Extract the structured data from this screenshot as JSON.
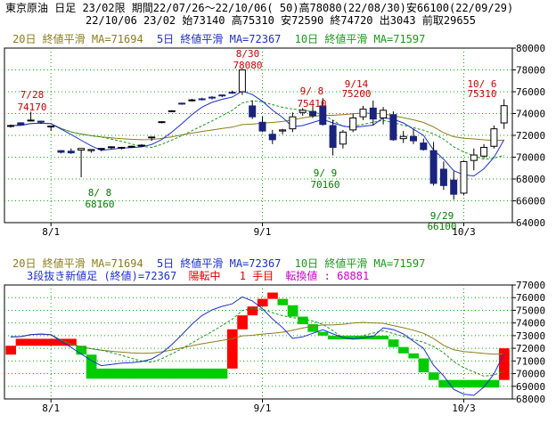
{
  "header": {
    "line1": "東京原油 日足 23/02限 期間22/07/26～22/10/06( 50)高78080(22/08/30)安66100(22/09/29)",
    "line2": "22/10/06 23/02 始73140 高75310 安72590 終74720 出3043 前取29655"
  },
  "legend_top": {
    "ma20": "20日 終値平滑 MA=71694",
    "ma5": "5日 終値平滑 MA=72367",
    "ma10": "10日 終値平滑 MA=71597"
  },
  "legend_bottom": {
    "ma20": "20日 終値平滑 MA=71694",
    "ma5": "5日 終値平滑 MA=72367",
    "ma10": "10日 終値平滑 MA=71597",
    "kagi_label": "3段抜き新値足 (終値)=72367",
    "state": "陽転中",
    "step": "1 手目",
    "convert": "転換値 : 68881"
  },
  "colors": {
    "ma20": "#8b7d1a",
    "ma5": "#1c2fd0",
    "ma10": "#1a9a1a",
    "bear_candle": "#1a237e",
    "up_block": "#ff0000",
    "down_block": "#00cc00",
    "annotation_high": "#cc0000",
    "annotation_low": "#008000",
    "grid": "#00b000"
  },
  "annotations": [
    {
      "date": "7/28",
      "price": "74170",
      "kind": "high"
    },
    {
      "date": "8/30",
      "price": "78080",
      "kind": "high"
    },
    {
      "date": "9/ 8",
      "price": "75410",
      "kind": "high"
    },
    {
      "date": "9/14",
      "price": "75200",
      "kind": "high"
    },
    {
      "date": "10/ 6",
      "price": "75310",
      "kind": "high"
    },
    {
      "date": "8/ 8",
      "price": "68160",
      "kind": "low"
    },
    {
      "date": "9/ 9",
      "price": "70160",
      "kind": "low"
    },
    {
      "date": "9/29",
      "price": "66100",
      "kind": "low"
    }
  ],
  "x_ticks": [
    "8/1",
    "9/1",
    "10/3"
  ],
  "chart_data": [
    {
      "type": "candlestick",
      "ylim": [
        64000,
        80000
      ],
      "yticks": [
        64000,
        66000,
        68000,
        70000,
        72000,
        74000,
        76000,
        78000,
        80000
      ],
      "candles": [
        {
          "o": 72850,
          "h": 73000,
          "l": 72700,
          "c": 72900
        },
        {
          "o": 73150,
          "h": 73200,
          "l": 72900,
          "c": 72950
        },
        {
          "o": 73350,
          "h": 74170,
          "l": 73300,
          "c": 73400
        },
        {
          "o": 73300,
          "h": 73350,
          "l": 73050,
          "c": 73250
        },
        {
          "o": 72800,
          "h": 72900,
          "l": 72400,
          "c": 72850
        },
        {
          "o": 70600,
          "h": 70650,
          "l": 70350,
          "c": 70450
        },
        {
          "o": 70550,
          "h": 70800,
          "l": 70300,
          "c": 70400
        },
        {
          "o": 70650,
          "h": 70700,
          "l": 68160,
          "c": 70800
        },
        {
          "o": 70600,
          "h": 70700,
          "l": 70400,
          "c": 70700
        },
        {
          "o": 70750,
          "h": 70800,
          "l": 70550,
          "c": 70800
        },
        {
          "o": 70900,
          "h": 71000,
          "l": 70750,
          "c": 70950
        },
        {
          "o": 70850,
          "h": 70950,
          "l": 70700,
          "c": 70900
        },
        {
          "o": 70950,
          "h": 71050,
          "l": 70850,
          "c": 71000
        },
        {
          "o": 71050,
          "h": 71200,
          "l": 70950,
          "c": 71100
        },
        {
          "o": 71800,
          "h": 71850,
          "l": 71500,
          "c": 71850
        },
        {
          "o": 73200,
          "h": 73300,
          "l": 73100,
          "c": 73250
        },
        {
          "o": 74200,
          "h": 74300,
          "l": 74150,
          "c": 74250
        },
        {
          "o": 74950,
          "h": 75000,
          "l": 74800,
          "c": 74900
        },
        {
          "o": 75250,
          "h": 75350,
          "l": 75100,
          "c": 75250
        },
        {
          "o": 75350,
          "h": 75450,
          "l": 75200,
          "c": 75300
        },
        {
          "o": 75500,
          "h": 75600,
          "l": 75300,
          "c": 75450
        },
        {
          "o": 75700,
          "h": 75750,
          "l": 75500,
          "c": 75650
        },
        {
          "o": 75950,
          "h": 76100,
          "l": 75800,
          "c": 75900
        },
        {
          "o": 76000,
          "h": 78080,
          "l": 75700,
          "c": 78000
        },
        {
          "o": 74700,
          "h": 75200,
          "l": 73500,
          "c": 73700
        },
        {
          "o": 73200,
          "h": 73700,
          "l": 72300,
          "c": 72400
        },
        {
          "o": 72100,
          "h": 72500,
          "l": 71200,
          "c": 71600
        },
        {
          "o": 72400,
          "h": 72600,
          "l": 72100,
          "c": 72500
        },
        {
          "o": 72600,
          "h": 74100,
          "l": 72300,
          "c": 73700
        },
        {
          "o": 74100,
          "h": 74500,
          "l": 73800,
          "c": 74300
        },
        {
          "o": 74200,
          "h": 74700,
          "l": 73600,
          "c": 73800
        },
        {
          "o": 74700,
          "h": 75410,
          "l": 72900,
          "c": 73000
        },
        {
          "o": 72900,
          "h": 73400,
          "l": 70160,
          "c": 70900
        },
        {
          "o": 71200,
          "h": 72500,
          "l": 70800,
          "c": 72300
        },
        {
          "o": 72500,
          "h": 74000,
          "l": 72300,
          "c": 73600
        },
        {
          "o": 73700,
          "h": 74700,
          "l": 73400,
          "c": 74400
        },
        {
          "o": 74500,
          "h": 75200,
          "l": 72900,
          "c": 73500
        },
        {
          "o": 73600,
          "h": 74600,
          "l": 73000,
          "c": 74300
        },
        {
          "o": 73900,
          "h": 74200,
          "l": 71500,
          "c": 71600
        },
        {
          "o": 71700,
          "h": 72400,
          "l": 71300,
          "c": 71900
        },
        {
          "o": 71900,
          "h": 72600,
          "l": 71200,
          "c": 71500
        },
        {
          "o": 71300,
          "h": 71700,
          "l": 70600,
          "c": 70700
        },
        {
          "o": 70600,
          "h": 71400,
          "l": 67400,
          "c": 67600
        },
        {
          "o": 68900,
          "h": 69600,
          "l": 67000,
          "c": 67400
        },
        {
          "o": 67900,
          "h": 68700,
          "l": 66100,
          "c": 66600
        },
        {
          "o": 66700,
          "h": 69700,
          "l": 66500,
          "c": 69600
        },
        {
          "o": 69700,
          "h": 70800,
          "l": 68800,
          "c": 70200
        },
        {
          "o": 70100,
          "h": 71200,
          "l": 69900,
          "c": 70900
        },
        {
          "o": 71000,
          "h": 72900,
          "l": 70800,
          "c": 72600
        },
        {
          "o": 73140,
          "h": 75310,
          "l": 72590,
          "c": 74720
        }
      ]
    },
    {
      "type": "bar",
      "subtype": "three-line-break",
      "ylim": [
        68000,
        77000
      ],
      "yticks": [
        68000,
        69000,
        70000,
        71000,
        72000,
        73000,
        74000,
        75000,
        76000,
        77000
      ],
      "blocks": [
        {
          "i": 0,
          "lo": 71500,
          "hi": 72200,
          "dir": "up"
        },
        {
          "i": 1,
          "lo": 72200,
          "hi": 72750,
          "dir": "up"
        },
        {
          "i": 2,
          "lo": 72200,
          "hi": 72750,
          "dir": "up"
        },
        {
          "i": 3,
          "lo": 72200,
          "hi": 72750,
          "dir": "up"
        },
        {
          "i": 4,
          "lo": 72200,
          "hi": 72750,
          "dir": "up"
        },
        {
          "i": 5,
          "lo": 72200,
          "hi": 72750,
          "dir": "up"
        },
        {
          "i": 6,
          "lo": 72200,
          "hi": 72750,
          "dir": "up"
        },
        {
          "i": 7,
          "lo": 71500,
          "hi": 72200,
          "dir": "down"
        },
        {
          "i": 8,
          "lo": 69600,
          "hi": 71500,
          "dir": "down"
        },
        {
          "i": 9,
          "lo": 69600,
          "hi": 70400,
          "dir": "down"
        },
        {
          "i": 10,
          "lo": 69600,
          "hi": 70400,
          "dir": "down"
        },
        {
          "i": 11,
          "lo": 69600,
          "hi": 70400,
          "dir": "down"
        },
        {
          "i": 12,
          "lo": 69600,
          "hi": 70400,
          "dir": "down"
        },
        {
          "i": 13,
          "lo": 69600,
          "hi": 70400,
          "dir": "down"
        },
        {
          "i": 14,
          "lo": 69600,
          "hi": 70400,
          "dir": "down"
        },
        {
          "i": 15,
          "lo": 69600,
          "hi": 70400,
          "dir": "down"
        },
        {
          "i": 16,
          "lo": 69600,
          "hi": 70400,
          "dir": "down"
        },
        {
          "i": 17,
          "lo": 69600,
          "hi": 70400,
          "dir": "down"
        },
        {
          "i": 18,
          "lo": 69600,
          "hi": 70400,
          "dir": "down"
        },
        {
          "i": 19,
          "lo": 69600,
          "hi": 70400,
          "dir": "down"
        },
        {
          "i": 20,
          "lo": 69600,
          "hi": 70400,
          "dir": "down"
        },
        {
          "i": 21,
          "lo": 69600,
          "hi": 70400,
          "dir": "down"
        },
        {
          "i": 22,
          "lo": 70400,
          "hi": 73500,
          "dir": "up"
        },
        {
          "i": 23,
          "lo": 73500,
          "hi": 74600,
          "dir": "up"
        },
        {
          "i": 24,
          "lo": 74600,
          "hi": 75300,
          "dir": "up"
        },
        {
          "i": 25,
          "lo": 75300,
          "hi": 75900,
          "dir": "up"
        },
        {
          "i": 26,
          "lo": 75900,
          "hi": 76400,
          "dir": "up"
        },
        {
          "i": 27,
          "lo": 75400,
          "hi": 75900,
          "dir": "down"
        },
        {
          "i": 28,
          "lo": 74500,
          "hi": 75400,
          "dir": "down"
        },
        {
          "i": 29,
          "lo": 73900,
          "hi": 74500,
          "dir": "down"
        },
        {
          "i": 30,
          "lo": 73300,
          "hi": 73900,
          "dir": "down"
        },
        {
          "i": 31,
          "lo": 73000,
          "hi": 73300,
          "dir": "down"
        },
        {
          "i": 32,
          "lo": 72700,
          "hi": 73000,
          "dir": "down"
        },
        {
          "i": 33,
          "lo": 72700,
          "hi": 73000,
          "dir": "down"
        },
        {
          "i": 34,
          "lo": 72700,
          "hi": 73000,
          "dir": "down"
        },
        {
          "i": 35,
          "lo": 72700,
          "hi": 73000,
          "dir": "down"
        },
        {
          "i": 36,
          "lo": 72700,
          "hi": 73000,
          "dir": "down"
        },
        {
          "i": 37,
          "lo": 72700,
          "hi": 73000,
          "dir": "down"
        },
        {
          "i": 38,
          "lo": 72100,
          "hi": 72700,
          "dir": "down"
        },
        {
          "i": 39,
          "lo": 71600,
          "hi": 72100,
          "dir": "down"
        },
        {
          "i": 40,
          "lo": 71200,
          "hi": 71600,
          "dir": "down"
        },
        {
          "i": 41,
          "lo": 70100,
          "hi": 71200,
          "dir": "down"
        },
        {
          "i": 42,
          "lo": 69500,
          "hi": 70100,
          "dir": "down"
        },
        {
          "i": 43,
          "lo": 68900,
          "hi": 69500,
          "dir": "down"
        },
        {
          "i": 44,
          "lo": 68900,
          "hi": 69500,
          "dir": "down"
        },
        {
          "i": 45,
          "lo": 68900,
          "hi": 69500,
          "dir": "down"
        },
        {
          "i": 46,
          "lo": 68900,
          "hi": 69500,
          "dir": "down"
        },
        {
          "i": 47,
          "lo": 68900,
          "hi": 69500,
          "dir": "down"
        },
        {
          "i": 48,
          "lo": 68900,
          "hi": 69500,
          "dir": "down"
        },
        {
          "i": 49,
          "lo": 69500,
          "hi": 72000,
          "dir": "up"
        }
      ]
    }
  ]
}
